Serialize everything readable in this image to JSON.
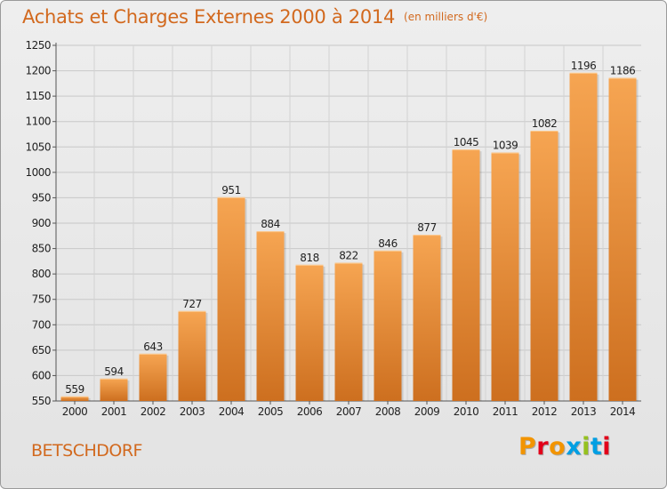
{
  "header": {
    "title": "Achats et Charges Externes 2000 à 2014",
    "subtitle": "(en milliers d'€)"
  },
  "footer": {
    "commune": "BETSCHDORF",
    "logo_text": "Proxiti",
    "logo_colors": [
      "#f29400",
      "#e2001a",
      "#f29400",
      "#009fe3",
      "#95c11f",
      "#009fe3",
      "#e2001a"
    ]
  },
  "colors": {
    "accent": "#d2691e",
    "bar_light": "#f6a552",
    "bar_dark": "#cd6f1f"
  },
  "chart_data": {
    "type": "bar",
    "title": "Achats et Charges Externes 2000 à 2014",
    "subtitle": "(en milliers d'€)",
    "categories": [
      "2000",
      "2001",
      "2002",
      "2003",
      "2004",
      "2005",
      "2006",
      "2007",
      "2008",
      "2009",
      "2010",
      "2011",
      "2012",
      "2013",
      "2014"
    ],
    "values": [
      559,
      594,
      643,
      727,
      951,
      884,
      818,
      822,
      846,
      877,
      1045,
      1039,
      1082,
      1196,
      1186
    ],
    "ylim": [
      550,
      1250
    ],
    "yticks": [
      550,
      600,
      650,
      700,
      750,
      800,
      850,
      900,
      950,
      1000,
      1050,
      1100,
      1150,
      1200,
      1250
    ],
    "grid": true,
    "data_labels": true
  }
}
